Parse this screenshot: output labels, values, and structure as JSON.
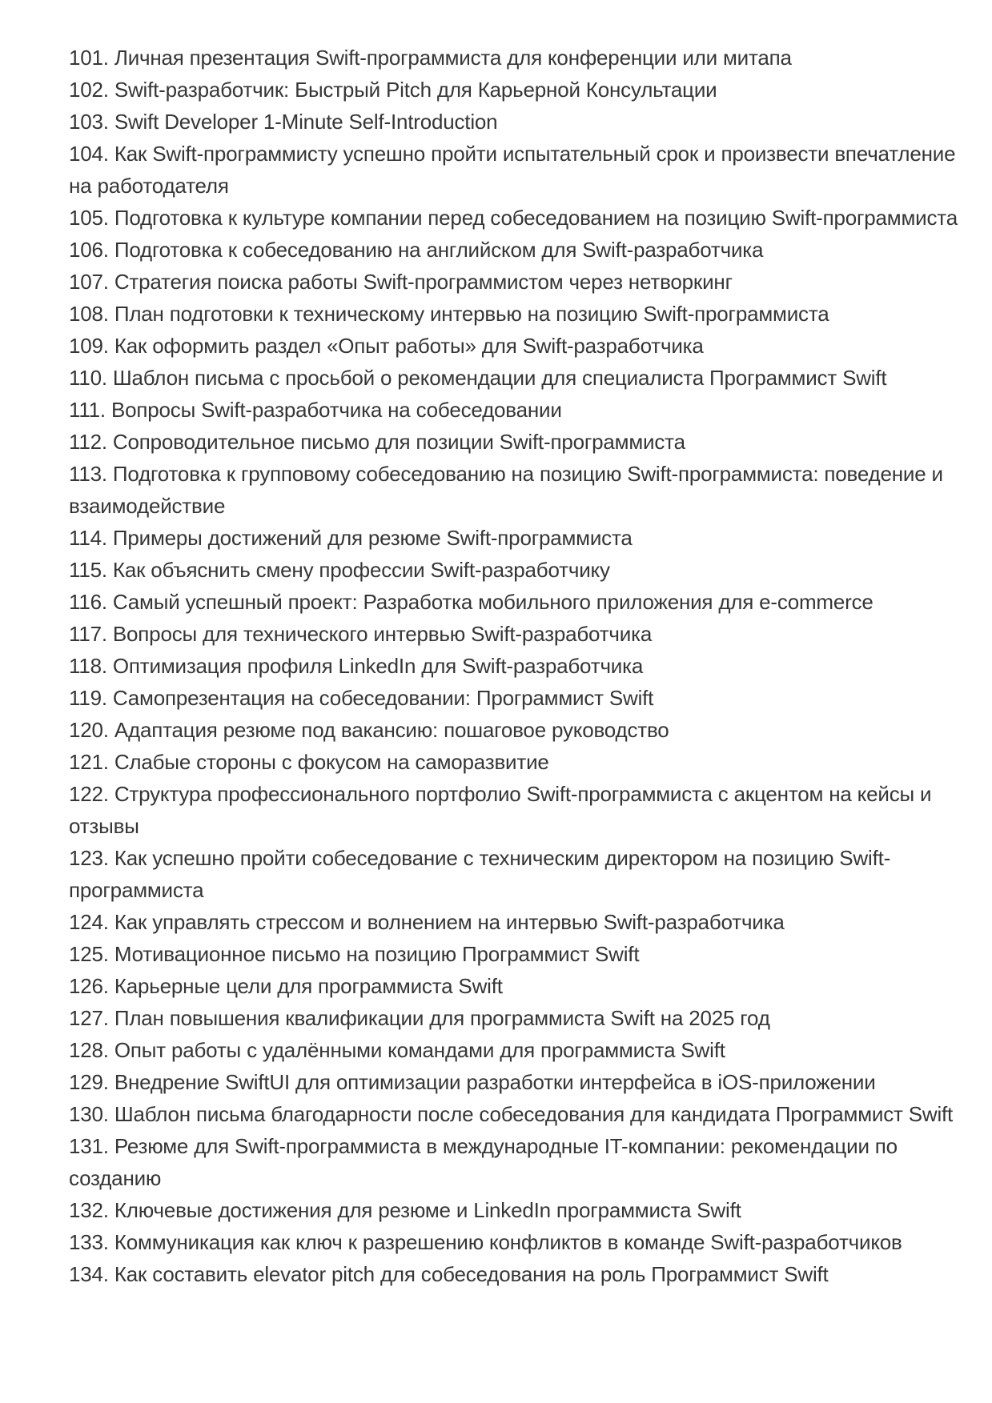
{
  "page": {
    "background": "#ffffff",
    "text_color": "#363636"
  },
  "list": {
    "items": [
      "101. Личная презентация Swift-программиста для конференции или митапа",
      "102. Swift-разработчик: Быстрый Pitch для Карьерной Консультации",
      "103. Swift Developer 1-Minute Self-Introduction",
      "104. Как Swift-программисту успешно пройти испытательный срок и произвести впечатление на работодателя",
      "105. Подготовка к культуре компании перед собеседованием на позицию Swift-программиста",
      "106. Подготовка к собеседованию на английском для Swift-разработчика",
      "107. Стратегия поиска работы Swift-программистом через нетворкинг",
      "108. План подготовки к техническому интервью на позицию Swift-программиста",
      "109. Как оформить раздел «Опыт работы» для Swift-разработчика",
      "110. Шаблон письма с просьбой о рекомендации для специалиста Программист Swift",
      "111. Вопросы Swift-разработчика на собеседовании",
      "112. Сопроводительное письмо для позиции Swift-программиста",
      "113. Подготовка к групповому собеседованию на позицию Swift-программиста: поведение и взаимодействие",
      "114. Примеры достижений для резюме Swift-программиста",
      "115. Как объяснить смену профессии Swift-разработчику",
      "116. Самый успешный проект: Разработка мобильного приложения для e-commerce",
      "117. Вопросы для технического интервью Swift-разработчика",
      "118. Оптимизация профиля LinkedIn для Swift-разработчика",
      "119. Самопрезентация на собеседовании: Программист Swift",
      "120. Адаптация резюме под вакансию: пошаговое руководство",
      "121. Слабые стороны с фокусом на саморазвитие",
      "122. Структура профессионального портфолио Swift-программиста с акцентом на кейсы и отзывы",
      "123. Как успешно пройти собеседование с техническим директором на позицию Swift-программиста",
      "124. Как управлять стрессом и волнением на интервью Swift-разработчика",
      "125. Мотивационное письмо на позицию Программист Swift",
      "126. Карьерные цели для программиста Swift",
      "127. План повышения квалификации для программиста Swift на 2025 год",
      "128. Опыт работы с удалёнными командами для программиста Swift",
      "129. Внедрение SwiftUI для оптимизации разработки интерфейса в iOS-приложении",
      "130. Шаблон письма благодарности после собеседования для кандидата Программист Swift",
      "131. Резюме для Swift-программиста в международные IT-компании: рекомендации по созданию",
      "132. Ключевые достижения для резюме и LinkedIn программиста Swift",
      "133. Коммуникация как ключ к разрешению конфликтов в команде Swift-разработчиков",
      "134. Как составить elevator pitch для собеседования на роль Программист Swift"
    ]
  }
}
